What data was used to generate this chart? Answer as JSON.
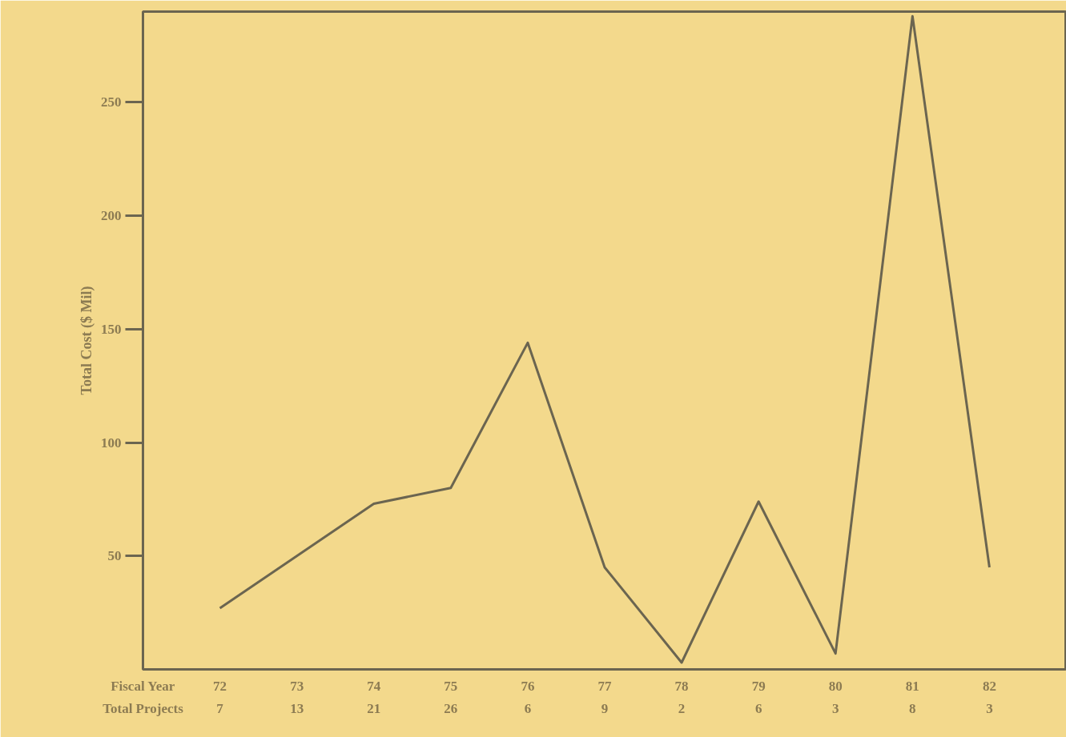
{
  "chart_data": {
    "type": "line",
    "xlabel": "Fiscal Year",
    "ylabel": "Total Cost ($ Mil)",
    "categories": [
      "72",
      "73",
      "74",
      "75",
      "76",
      "77",
      "78",
      "79",
      "80",
      "81",
      "82"
    ],
    "series": [
      {
        "color": "#6b6550",
        "values": [
          27,
          50,
          73,
          80,
          144,
          45,
          3,
          74,
          7,
          288,
          45
        ]
      }
    ],
    "ylim": [
      0,
      290
    ],
    "yticks": [
      50,
      100,
      150,
      200,
      250
    ],
    "grid": false,
    "marker": "none",
    "line_style": "solid",
    "annotations": [
      "Total Projects",
      "7",
      "13",
      "21",
      "26",
      "6",
      "9",
      "2",
      "6",
      "3",
      "8",
      "3"
    ]
  }
}
